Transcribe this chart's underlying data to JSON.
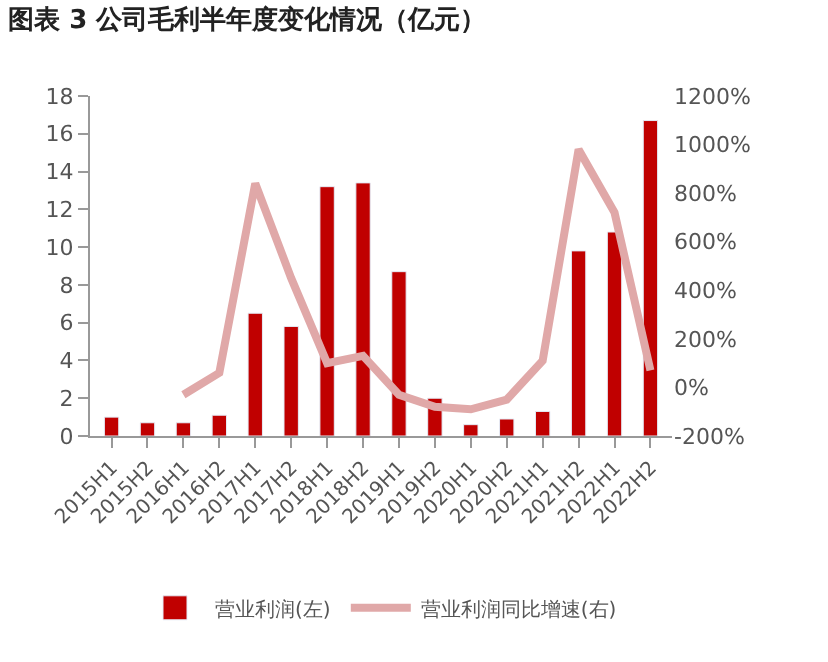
{
  "chart_data": {
    "type": "bar",
    "title": "图表 3 公司毛利半年度变化情况（亿元）",
    "categories": [
      "2015H1",
      "2015H2",
      "2016H1",
      "2016H2",
      "2017H1",
      "2017H2",
      "2018H1",
      "2018H2",
      "2019H1",
      "2019H2",
      "2020H1",
      "2020H2",
      "2021H1",
      "2021H2",
      "2022H1",
      "2022H2"
    ],
    "series": [
      {
        "name": "营业利润(左)",
        "color": "#c00000",
        "values": [
          1.0,
          0.7,
          0.7,
          1.1,
          6.5,
          5.8,
          13.2,
          13.4,
          8.7,
          2.0,
          0.6,
          0.9,
          1.3,
          9.8,
          10.8,
          16.7
        ]
      },
      {
        "name": "营业利润同比增速(右)",
        "type": "line",
        "axis": "y2",
        "color": "#e0a8a8",
        "values": [
          null,
          null,
          -30,
          60,
          840,
          450,
          100,
          130,
          -30,
          -80,
          -90,
          -50,
          110,
          980,
          720,
          70
        ]
      }
    ],
    "ylim": [
      0,
      18
    ],
    "yticks": [
      0,
      2,
      4,
      6,
      8,
      10,
      12,
      14,
      16,
      18
    ],
    "y2lim": [
      -200,
      1200
    ],
    "y2ticks": [
      {
        "value": -200,
        "label": "-200%"
      },
      {
        "value": 0,
        "label": "0%"
      },
      {
        "value": 200,
        "label": "200%"
      },
      {
        "value": 400,
        "label": "400%"
      },
      {
        "value": 600,
        "label": "600%"
      },
      {
        "value": 800,
        "label": "800%"
      },
      {
        "value": 1000,
        "label": "1000%"
      },
      {
        "value": 1200,
        "label": "1200%"
      }
    ],
    "legend": "bottom"
  }
}
